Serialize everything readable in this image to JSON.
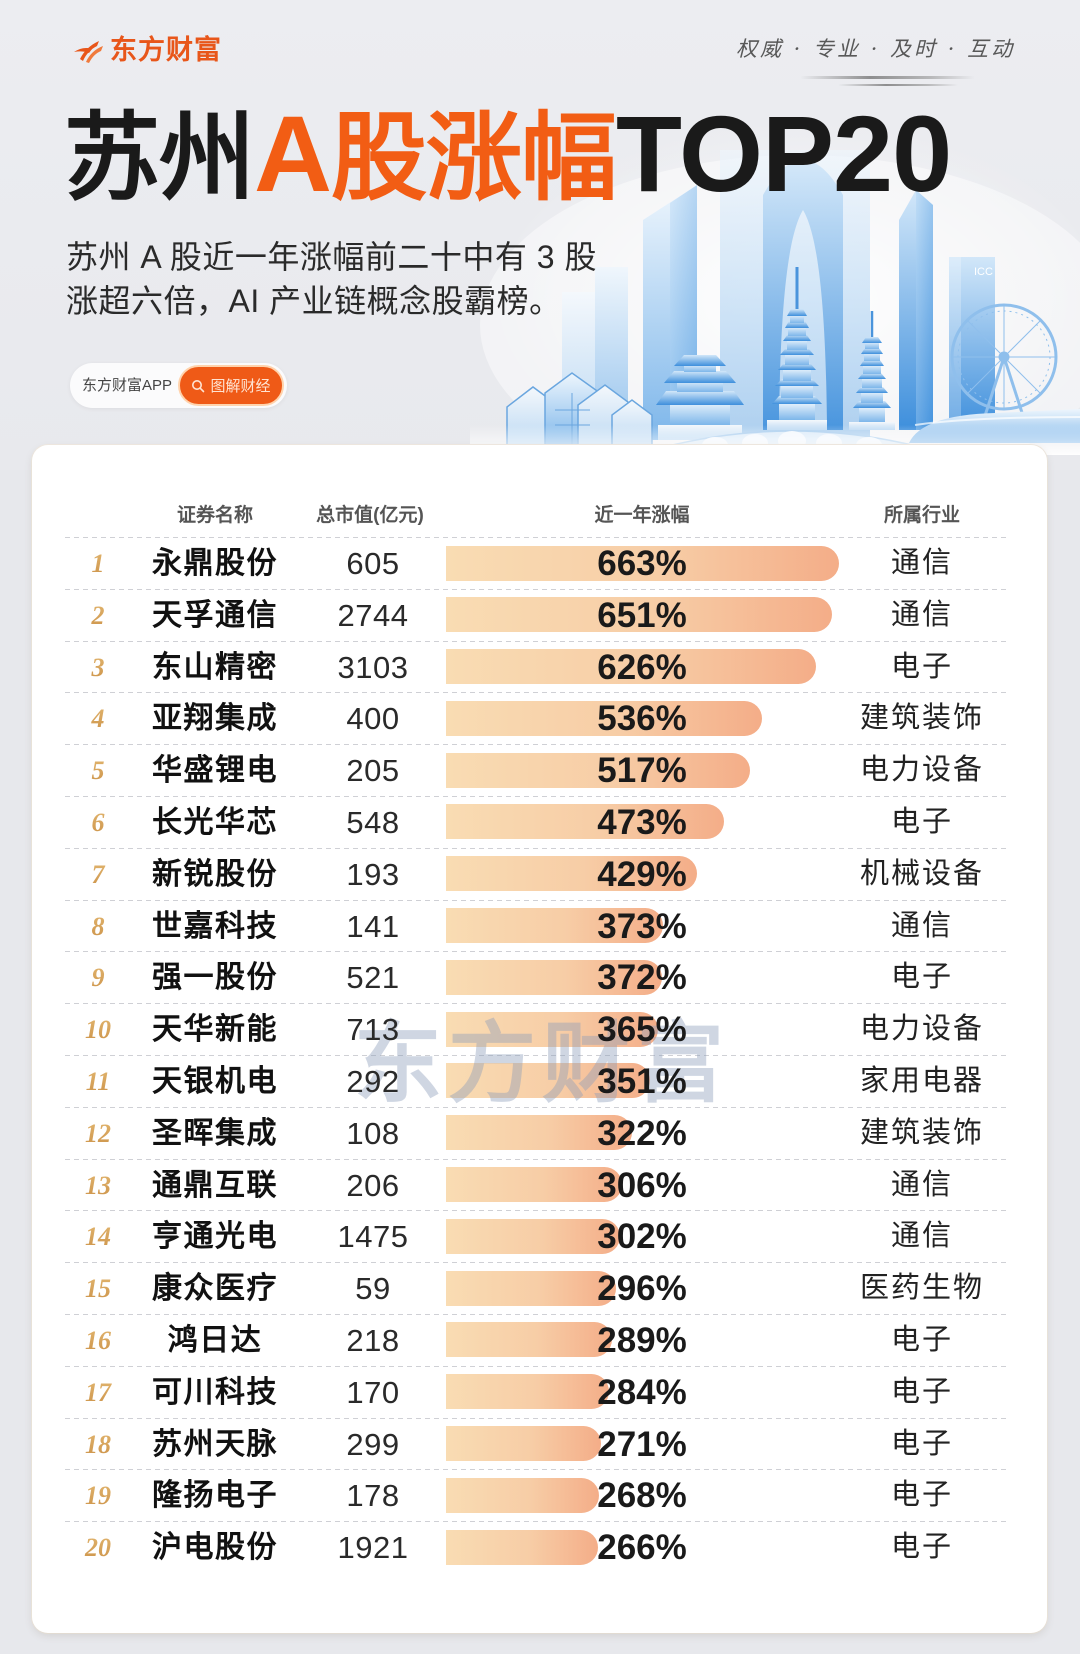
{
  "brand": {
    "logo_text": "东方财富",
    "logo_icon": "eastmoney-swoosh-icon",
    "slogan": "权威 · 专业 · 及时 · 互动"
  },
  "title": {
    "dark_prefix": "苏州",
    "accent_latin": "A",
    "accent_cjk": "股涨幅",
    "dark_suffix": "TOP20"
  },
  "subtitle": {
    "lines": [
      "苏州 A 股近一年涨幅前二十中有 3 股",
      "涨超六倍，AI 产业链概念股霸榜。"
    ]
  },
  "tag_pill": {
    "app_label": "东方财富APP",
    "search_icon": "search-icon",
    "search_label": "图解财经"
  },
  "skyline": {
    "icc_label": "ICC"
  },
  "table": {
    "headers": {
      "name": "证券名称",
      "market_cap": "总市值(亿元)",
      "change": "近一年涨幅",
      "industry": "所属行业"
    },
    "rows": [
      {
        "rank": "1",
        "name": "永鼎股份",
        "market_cap": "605",
        "change": "663%",
        "industry": "通信"
      },
      {
        "rank": "2",
        "name": "天孚通信",
        "market_cap": "2744",
        "change": "651%",
        "industry": "通信"
      },
      {
        "rank": "3",
        "name": "东山精密",
        "market_cap": "3103",
        "change": "626%",
        "industry": "电子"
      },
      {
        "rank": "4",
        "name": "亚翔集成",
        "market_cap": "400",
        "change": "536%",
        "industry": "建筑装饰"
      },
      {
        "rank": "5",
        "name": "华盛锂电",
        "market_cap": "205",
        "change": "517%",
        "industry": "电力设备"
      },
      {
        "rank": "6",
        "name": "长光华芯",
        "market_cap": "548",
        "change": "473%",
        "industry": "电子"
      },
      {
        "rank": "7",
        "name": "新锐股份",
        "market_cap": "193",
        "change": "429%",
        "industry": "机械设备"
      },
      {
        "rank": "8",
        "name": "世嘉科技",
        "market_cap": "141",
        "change": "373%",
        "industry": "通信"
      },
      {
        "rank": "9",
        "name": "强一股份",
        "market_cap": "521",
        "change": "372%",
        "industry": "电子"
      },
      {
        "rank": "10",
        "name": "天华新能",
        "market_cap": "713",
        "change": "365%",
        "industry": "电力设备"
      },
      {
        "rank": "11",
        "name": "天银机电",
        "market_cap": "292",
        "change": "351%",
        "industry": "家用电器"
      },
      {
        "rank": "12",
        "name": "圣晖集成",
        "market_cap": "108",
        "change": "322%",
        "industry": "建筑装饰"
      },
      {
        "rank": "13",
        "name": "通鼎互联",
        "market_cap": "206",
        "change": "306%",
        "industry": "通信"
      },
      {
        "rank": "14",
        "name": "亨通光电",
        "market_cap": "1475",
        "change": "302%",
        "industry": "通信"
      },
      {
        "rank": "15",
        "name": "康众医疗",
        "market_cap": "59",
        "change": "296%",
        "industry": "医药生物"
      },
      {
        "rank": "16",
        "name": "鸿日达",
        "market_cap": "218",
        "change": "289%",
        "industry": "电子"
      },
      {
        "rank": "17",
        "name": "可川科技",
        "market_cap": "170",
        "change": "284%",
        "industry": "电子"
      },
      {
        "rank": "18",
        "name": "苏州天脉",
        "market_cap": "299",
        "change": "271%",
        "industry": "电子"
      },
      {
        "rank": "19",
        "name": "隆扬电子",
        "market_cap": "178",
        "change": "268%",
        "industry": "电子"
      },
      {
        "rank": "20",
        "name": "沪电股份",
        "market_cap": "1921",
        "change": "266%",
        "industry": "电子"
      }
    ]
  },
  "watermark": {
    "text": "东方财富"
  },
  "colors": {
    "accent": "#f25d14",
    "text_dark": "#1a1a1a",
    "bar_start": "#f9dcb3",
    "bar_end": "#f4ad88",
    "rank_light": "#ebc47f",
    "rank_dark": "#c4863b",
    "page_bg": "#e7e8ec"
  },
  "chart_data": {
    "type": "bar",
    "orientation": "horizontal",
    "title": "苏州A股涨幅TOP20",
    "subtitle": "苏州 A 股近一年涨幅前二十中有 3 股涨超六倍，AI 产业链概念股霸榜。",
    "xlabel": "近一年涨幅",
    "ylabel": "证券名称",
    "unit": "%",
    "categories": [
      "永鼎股份",
      "天孚通信",
      "东山精密",
      "亚翔集成",
      "华盛锂电",
      "长光华芯",
      "新锐股份",
      "世嘉科技",
      "强一股份",
      "天华新能",
      "天银机电",
      "圣晖集成",
      "通鼎互联",
      "亨通光电",
      "康众医疗",
      "鸿日达",
      "可川科技",
      "苏州天脉",
      "隆扬电子",
      "沪电股份"
    ],
    "values": [
      663,
      651,
      626,
      536,
      517,
      473,
      429,
      373,
      372,
      365,
      351,
      322,
      306,
      302,
      296,
      289,
      284,
      271,
      268,
      266
    ],
    "extra_columns": {
      "market_cap_100m_cny": [
        605,
        2744,
        3103,
        400,
        205,
        548,
        193,
        141,
        521,
        713,
        292,
        108,
        206,
        1475,
        59,
        218,
        170,
        299,
        178,
        1921
      ],
      "industry": [
        "通信",
        "通信",
        "电子",
        "建筑装饰",
        "电力设备",
        "电子",
        "机械设备",
        "通信",
        "电子",
        "电力设备",
        "家用电器",
        "建筑装饰",
        "通信",
        "通信",
        "医药生物",
        "电子",
        "电子",
        "电子",
        "电子",
        "电子"
      ]
    },
    "xlim": [
      0,
      700
    ],
    "grid": false,
    "legend": "none"
  }
}
